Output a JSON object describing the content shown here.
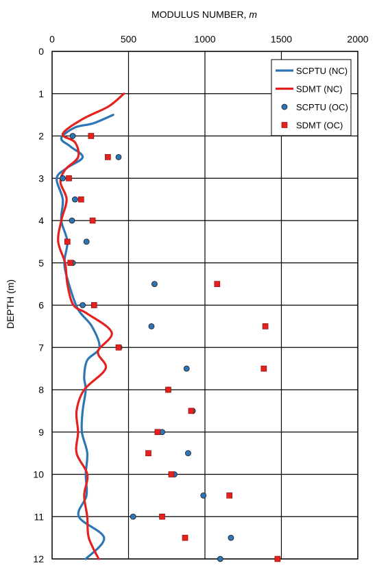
{
  "chart_data": {
    "type": "line",
    "title": "",
    "xlabel_text": "MODULUS NUMBER, ",
    "xlabel_italic": "m",
    "ylabel": "DEPTH (m)",
    "xlim": [
      0,
      2000
    ],
    "ylim": [
      0,
      12
    ],
    "x_axis_position": "top",
    "y_axis_inverted": true,
    "grid": true,
    "legend_placement": "top-right",
    "x_ticks": [
      {
        "value": 0,
        "label": "0"
      },
      {
        "value": 500,
        "label": "500"
      },
      {
        "value": 1000,
        "label": "1000"
      },
      {
        "value": 1500,
        "label": "1500"
      },
      {
        "value": 2000,
        "label": "2000"
      }
    ],
    "y_ticks": [
      {
        "value": 0,
        "label": "0"
      },
      {
        "value": 1,
        "label": "1"
      },
      {
        "value": 2,
        "label": "2"
      },
      {
        "value": 3,
        "label": "3"
      },
      {
        "value": 4,
        "label": "4"
      },
      {
        "value": 5,
        "label": "5"
      },
      {
        "value": 6,
        "label": "6"
      },
      {
        "value": 7,
        "label": "7"
      },
      {
        "value": 8,
        "label": "8"
      },
      {
        "value": 9,
        "label": "9"
      },
      {
        "value": 10,
        "label": "10"
      },
      {
        "value": 11,
        "label": "11"
      },
      {
        "value": 12,
        "label": "12"
      }
    ],
    "series": [
      {
        "name": "SCPTU (NC)",
        "kind": "line",
        "color": "#2E75B6",
        "points": [
          [
            400,
            1.5
          ],
          [
            270,
            1.7
          ],
          [
            150,
            1.8
          ],
          [
            60,
            2.05
          ],
          [
            120,
            2.25
          ],
          [
            200,
            2.5
          ],
          [
            100,
            2.75
          ],
          [
            30,
            3.0
          ],
          [
            70,
            3.5
          ],
          [
            60,
            4.0
          ],
          [
            100,
            4.5
          ],
          [
            80,
            5.0
          ],
          [
            110,
            5.5
          ],
          [
            170,
            6.1
          ],
          [
            260,
            6.5
          ],
          [
            310,
            7.0
          ],
          [
            230,
            7.3
          ],
          [
            210,
            7.7
          ],
          [
            220,
            8.0
          ],
          [
            200,
            8.5
          ],
          [
            195,
            9.0
          ],
          [
            230,
            9.5
          ],
          [
            220,
            10.0
          ],
          [
            225,
            10.5
          ],
          [
            175,
            11.0
          ],
          [
            340,
            11.5
          ],
          [
            220,
            12.0
          ]
        ]
      },
      {
        "name": "SDMT (NC)",
        "kind": "line",
        "color": "#E3221F",
        "points": [
          [
            470,
            1.0
          ],
          [
            370,
            1.3
          ],
          [
            200,
            1.6
          ],
          [
            70,
            1.95
          ],
          [
            150,
            2.15
          ],
          [
            170,
            2.5
          ],
          [
            85,
            2.8
          ],
          [
            55,
            3.1
          ],
          [
            95,
            3.5
          ],
          [
            60,
            4.0
          ],
          [
            40,
            4.5
          ],
          [
            85,
            5.0
          ],
          [
            100,
            5.5
          ],
          [
            140,
            6.0
          ],
          [
            230,
            6.2
          ],
          [
            390,
            6.65
          ],
          [
            300,
            7.1
          ],
          [
            350,
            7.5
          ],
          [
            210,
            8.0
          ],
          [
            160,
            8.5
          ],
          [
            170,
            9.0
          ],
          [
            160,
            9.5
          ],
          [
            230,
            10.0
          ],
          [
            210,
            10.5
          ],
          [
            230,
            11.0
          ],
          [
            240,
            11.5
          ],
          [
            305,
            12.0
          ]
        ]
      },
      {
        "name": "SCPTU (OC)",
        "kind": "marker",
        "marker": "circle",
        "color": "#2E75B6",
        "points": [
          [
            135,
            2.0
          ],
          [
            435,
            2.5
          ],
          [
            70,
            3.0
          ],
          [
            150,
            3.5
          ],
          [
            130,
            4.0
          ],
          [
            225,
            4.5
          ],
          [
            135,
            5.0
          ],
          [
            670,
            5.5
          ],
          [
            200,
            6.0
          ],
          [
            650,
            6.5
          ],
          [
            440,
            7.0
          ],
          [
            880,
            7.5
          ],
          [
            760,
            8.0
          ],
          [
            920,
            8.5
          ],
          [
            720,
            9.0
          ],
          [
            890,
            9.5
          ],
          [
            800,
            10.0
          ],
          [
            990,
            10.5
          ],
          [
            530,
            11.0
          ],
          [
            1170,
            11.5
          ],
          [
            1100,
            12.0
          ]
        ]
      },
      {
        "name": "SDMT (OC)",
        "kind": "marker",
        "marker": "square",
        "color": "#E3221F",
        "points": [
          [
            255,
            2.0
          ],
          [
            365,
            2.5
          ],
          [
            110,
            3.0
          ],
          [
            190,
            3.5
          ],
          [
            265,
            4.0
          ],
          [
            100,
            4.5
          ],
          [
            120,
            5.0
          ],
          [
            1080,
            5.5
          ],
          [
            275,
            6.0
          ],
          [
            1395,
            6.5
          ],
          [
            435,
            7.0
          ],
          [
            1385,
            7.5
          ],
          [
            760,
            8.0
          ],
          [
            910,
            8.5
          ],
          [
            690,
            9.0
          ],
          [
            630,
            9.5
          ],
          [
            780,
            10.0
          ],
          [
            1160,
            10.5
          ],
          [
            720,
            11.0
          ],
          [
            870,
            11.5
          ],
          [
            1475,
            12.0
          ]
        ]
      }
    ]
  }
}
